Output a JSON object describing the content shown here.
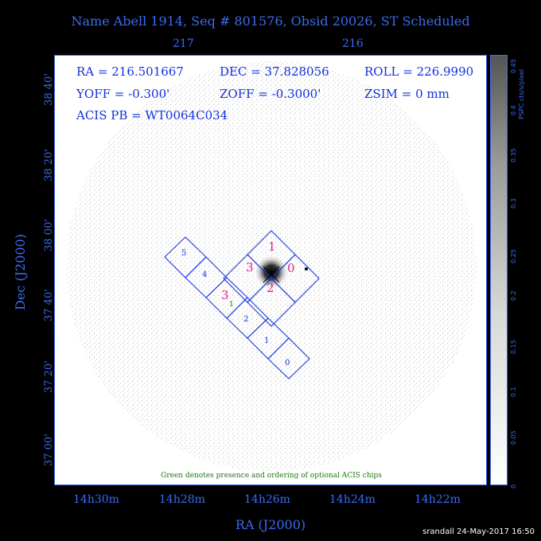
{
  "title": "Name Abell 1914, Seq # 801576, Obsid 20026, ST Scheduled",
  "top_ticks": [
    "217",
    "216"
  ],
  "info": {
    "ra": "RA = 216.501667",
    "dec": "DEC = 37.828056",
    "roll": "ROLL = 226.9990",
    "yoff": "YOFF = -0.300'",
    "zoff": "ZOFF = -0.3000'",
    "zsim": "ZSIM = 0 mm",
    "acis_pb": "ACIS PB = WT0064C034"
  },
  "y_ticks": [
    "38 40'",
    "38 20'",
    "38 00'",
    "37 40'",
    "37 20'",
    "37 00'"
  ],
  "x_ticks": [
    "14h30m",
    "14h28m",
    "14h26m",
    "14h24m",
    "14h22m"
  ],
  "x_axis_label": "RA (J2000)",
  "y_axis_label": "Dec (J2000)",
  "chips_s_array": [
    "5",
    "4",
    "3",
    "2",
    "1",
    "0"
  ],
  "chips_i_array": [
    "1",
    "3",
    "0",
    "2"
  ],
  "optional_chip": "1",
  "green_note": "Green denotes presence and ordering of optional ACIS chips",
  "colorbar": {
    "label": "PSPC cts/s/pixel",
    "ticks": [
      "0",
      "0.05",
      "0.1",
      "0.15",
      "0.2",
      "0.25",
      "0.3",
      "0.35",
      "0.4",
      "0.45"
    ]
  },
  "footer": "srandall 24-May-2017 16:50",
  "colors": {
    "axis": "#3a6cf0",
    "chip_outline": "#1030e0",
    "chip_main_label": "#e0208c",
    "optional": "#1d7a10"
  }
}
